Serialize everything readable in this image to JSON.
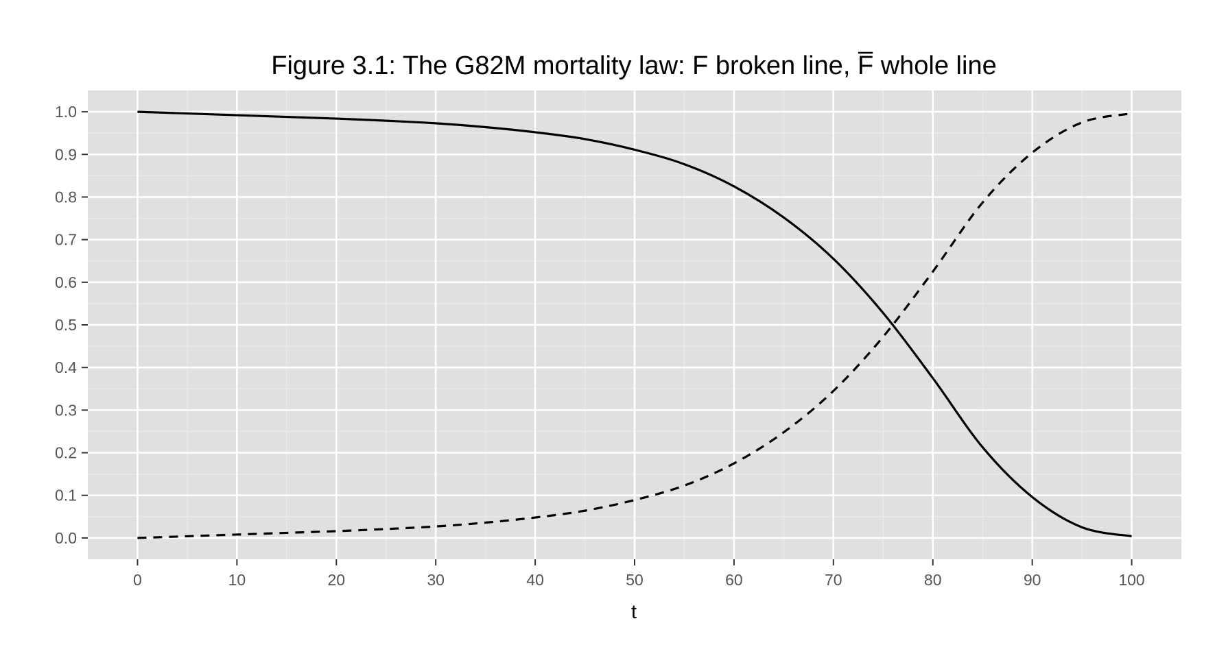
{
  "chart_data": {
    "type": "line",
    "title_parts": {
      "prefix": "Figure 3.1: The G82M mortality law: F broken line, ",
      "fbar": "F",
      "suffix": " whole line"
    },
    "xlabel": "t",
    "ylabel": "",
    "xlim": [
      -5,
      105
    ],
    "ylim": [
      -0.05,
      1.05
    ],
    "x_ticks": [
      0,
      10,
      20,
      30,
      40,
      50,
      60,
      70,
      80,
      90,
      100
    ],
    "x_tick_labels": [
      "0",
      "10",
      "20",
      "30",
      "40",
      "50",
      "60",
      "70",
      "80",
      "90",
      "100"
    ],
    "y_ticks": [
      0.0,
      0.1,
      0.2,
      0.3,
      0.4,
      0.5,
      0.6,
      0.7,
      0.8,
      0.9,
      1.0
    ],
    "y_tick_labels": [
      "0.0",
      "0.1",
      "0.2",
      "0.3",
      "0.4",
      "0.5",
      "0.6",
      "0.7",
      "0.8",
      "0.9",
      "1.0"
    ],
    "grid": true,
    "x": [
      0,
      5,
      10,
      15,
      20,
      25,
      30,
      35,
      40,
      45,
      50,
      55,
      60,
      65,
      70,
      75,
      80,
      85,
      90,
      95,
      100
    ],
    "series": [
      {
        "style": "dashed",
        "values": [
          0.0,
          0.004,
          0.008,
          0.012,
          0.016,
          0.021,
          0.027,
          0.036,
          0.048,
          0.064,
          0.089,
          0.123,
          0.175,
          0.248,
          0.345,
          0.472,
          0.625,
          0.787,
          0.904,
          0.975,
          0.996
        ]
      },
      {
        "style": "solid",
        "values": [
          1.0,
          0.996,
          0.992,
          0.988,
          0.984,
          0.979,
          0.973,
          0.964,
          0.952,
          0.936,
          0.911,
          0.877,
          0.825,
          0.752,
          0.655,
          0.528,
          0.375,
          0.213,
          0.096,
          0.025,
          0.004
        ]
      }
    ],
    "colors": {
      "panel_bg": "#e0e0e0",
      "grid_major": "#ffffff",
      "grid_minor": "#ebebeb",
      "line": "#000000",
      "tick_text": "#555555"
    }
  }
}
